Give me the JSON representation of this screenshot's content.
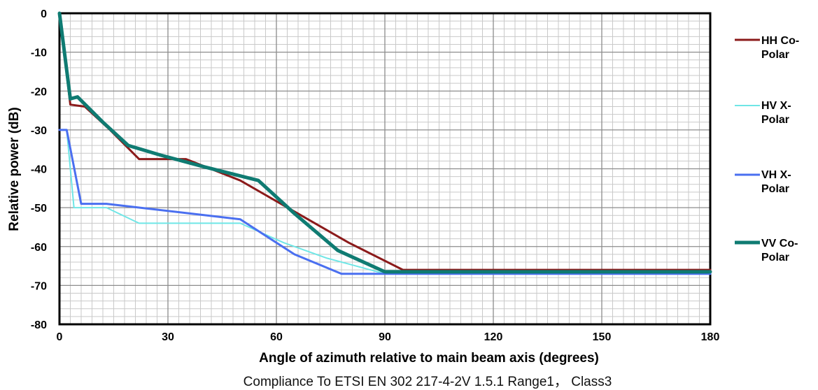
{
  "chart_data": {
    "type": "line",
    "title": "",
    "xlabel": "Angle of azimuth relative to main beam axis (degrees)",
    "ylabel": "Relative power (dB)",
    "caption": "Compliance To ETSI EN 302 217-4-2V 1.5.1 Range1， Class3",
    "xlim": [
      0,
      180
    ],
    "ylim": [
      -80,
      0
    ],
    "x_ticks": [
      "0",
      "30",
      "60",
      "90",
      "120",
      "150",
      "180"
    ],
    "y_ticks": [
      "0",
      "-10",
      "-20",
      "-30",
      "-40",
      "-50",
      "-60",
      "-70",
      "-80"
    ],
    "grid": true,
    "legend_position": "right",
    "series": [
      {
        "name_line1": "HH Co-",
        "name_line2": "Polar",
        "color": "#8b1a1a",
        "width": 3,
        "points": [
          [
            0,
            0
          ],
          [
            3,
            -23.5
          ],
          [
            7,
            -24
          ],
          [
            14,
            -30
          ],
          [
            22,
            -37.5
          ],
          [
            30,
            -37.5
          ],
          [
            35,
            -37.5
          ],
          [
            50,
            -43
          ],
          [
            65,
            -51
          ],
          [
            80,
            -59
          ],
          [
            95,
            -66
          ],
          [
            180,
            -66
          ]
        ]
      },
      {
        "name_line1": "HV X-",
        "name_line2": "Polar",
        "color": "#6fe6e6",
        "width": 2,
        "points": [
          [
            0,
            -30
          ],
          [
            2,
            -30
          ],
          [
            4,
            -50
          ],
          [
            13,
            -50
          ],
          [
            22,
            -54
          ],
          [
            50,
            -54
          ],
          [
            62,
            -59
          ],
          [
            74,
            -63
          ],
          [
            90,
            -67
          ],
          [
            180,
            -67
          ]
        ]
      },
      {
        "name_line1": "VH X-",
        "name_line2": "Polar",
        "color": "#4a6ff0",
        "width": 3,
        "points": [
          [
            0,
            -30
          ],
          [
            2,
            -30
          ],
          [
            6,
            -49
          ],
          [
            13,
            -49
          ],
          [
            50,
            -53
          ],
          [
            65,
            -62
          ],
          [
            78,
            -67
          ],
          [
            180,
            -67
          ]
        ]
      },
      {
        "name_line1": "VV Co-",
        "name_line2": "Polar",
        "color": "#0f7b72",
        "width": 5,
        "points": [
          [
            0,
            0
          ],
          [
            3,
            -22
          ],
          [
            5,
            -21.5
          ],
          [
            12,
            -28
          ],
          [
            19,
            -34
          ],
          [
            28,
            -36.5
          ],
          [
            40,
            -39.5
          ],
          [
            55,
            -43
          ],
          [
            65,
            -51.5
          ],
          [
            77,
            -61
          ],
          [
            90,
            -66.5
          ],
          [
            180,
            -66.5
          ]
        ]
      }
    ]
  }
}
